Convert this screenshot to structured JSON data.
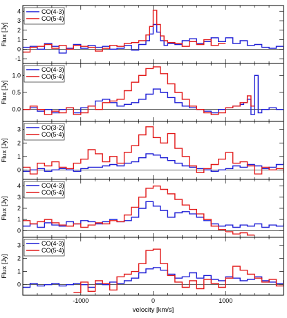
{
  "chart_data": [
    {
      "type": "line",
      "ylabel": "Flux [Jy]",
      "xlim": [
        -1800,
        1800
      ],
      "ylim": [
        -1.5,
        4.6
      ],
      "yticks": [
        "-1",
        "0",
        "1",
        "2",
        "3",
        "4"
      ],
      "legend_position": "top-left",
      "series": [
        {
          "name": "CO(4-3)",
          "color": "#1f1fd6",
          "x": [
            -1800,
            -1700,
            -1600,
            -1500,
            -1400,
            -1300,
            -1200,
            -1100,
            -1000,
            -900,
            -800,
            -700,
            -600,
            -500,
            -400,
            -300,
            -200,
            -100,
            -50,
            0,
            50,
            100,
            150,
            200,
            300,
            400,
            500,
            600,
            700,
            800,
            900,
            1000,
            1100,
            1200,
            1300,
            1400,
            1500,
            1600,
            1700,
            1800
          ],
          "y": [
            0.2,
            0.3,
            0.0,
            0.6,
            0.3,
            -0.4,
            0.1,
            0.5,
            0.1,
            0.4,
            0.2,
            0.3,
            0.0,
            0.1,
            0.4,
            -0.1,
            0.5,
            0.9,
            1.6,
            2.6,
            1.8,
            0.9,
            0.4,
            0.6,
            0.5,
            0.9,
            1.1,
            0.6,
            0.8,
            1.2,
            0.8,
            1.2,
            0.6,
            0.9,
            0.4,
            0.5,
            0.2,
            0.1,
            0.3,
            0.0
          ]
        },
        {
          "name": "CO(5-4)",
          "color": "#e21a1a",
          "x": [
            -1800,
            -1700,
            -1600,
            -1500,
            -1400,
            -1300,
            -1200,
            -1100,
            -1000,
            -900,
            -800,
            -700,
            -600,
            -500,
            -400,
            -300,
            -200,
            -100,
            -50,
            0,
            50,
            100,
            150,
            200,
            300,
            400,
            500,
            600,
            700,
            800,
            900
          ],
          "y": [
            -0.3,
            0.2,
            0.3,
            0.5,
            0.1,
            0.4,
            0.0,
            0.4,
            0.3,
            0.2,
            -0.2,
            0.1,
            0.4,
            0.3,
            0.6,
            0.7,
            0.9,
            1.5,
            2.4,
            4.1,
            2.6,
            1.4,
            0.9,
            0.7,
            0.6,
            0.3,
            0.8,
            0.5,
            1.0,
            0.4,
            0.6
          ]
        }
      ]
    },
    {
      "type": "line",
      "ylabel": "Flux [Jy]",
      "xlim": [
        -1800,
        1800
      ],
      "ylim": [
        -0.35,
        1.35
      ],
      "yticks": [
        "0.0",
        "0.5",
        "1.0"
      ],
      "legend_position": "top-left",
      "series": [
        {
          "name": "CO(4-3)",
          "color": "#1f1fd6",
          "x": [
            -1800,
            -1700,
            -1600,
            -1500,
            -1400,
            -1300,
            -1200,
            -1100,
            -1000,
            -900,
            -800,
            -700,
            -600,
            -500,
            -400,
            -300,
            -200,
            -100,
            0,
            100,
            200,
            300,
            400,
            500,
            600,
            700,
            800,
            900,
            1000,
            1100,
            1200,
            1250,
            1300,
            1350,
            1400,
            1450,
            1500,
            1600,
            1700,
            1800
          ],
          "y": [
            0.0,
            0.05,
            -0.05,
            0.0,
            -0.1,
            0.0,
            0.05,
            -0.1,
            0.05,
            0.1,
            0.25,
            0.3,
            0.2,
            0.1,
            0.15,
            0.2,
            0.3,
            0.45,
            0.6,
            0.5,
            0.35,
            0.2,
            0.1,
            0.05,
            0.0,
            -0.05,
            -0.1,
            0.0,
            0.05,
            0.1,
            0.15,
            0.2,
            0.3,
            -0.15,
            1.0,
            -0.1,
            0.0,
            0.05,
            0.0,
            0.0
          ]
        },
        {
          "name": "CO(5-4)",
          "color": "#e21a1a",
          "x": [
            -1800,
            -1700,
            -1600,
            -1500,
            -1400,
            -1300,
            -1200,
            -1100,
            -1000,
            -900,
            -800,
            -700,
            -600,
            -500,
            -400,
            -300,
            -200,
            -100,
            0,
            100,
            200,
            300,
            400,
            500,
            600,
            700,
            800,
            900,
            1000,
            1100,
            1200,
            1300,
            1350
          ],
          "y": [
            0.0,
            0.1,
            0.0,
            -0.15,
            -0.05,
            -0.1,
            0.05,
            -0.15,
            -0.1,
            0.1,
            0.0,
            0.2,
            0.25,
            0.3,
            0.55,
            0.8,
            1.0,
            1.2,
            1.25,
            1.05,
            0.75,
            0.5,
            0.3,
            0.1,
            0.0,
            -0.1,
            -0.15,
            -0.1,
            0.05,
            0.1,
            0.2,
            0.4,
            0.1
          ]
        }
      ]
    },
    {
      "type": "line",
      "ylabel": "Flux [Jy]",
      "xlim": [
        -1800,
        1800
      ],
      "ylim": [
        -0.7,
        3.6
      ],
      "yticks": [
        "0",
        "1",
        "2",
        "3"
      ],
      "legend_position": "top-left",
      "series": [
        {
          "name": "CO(3-2)",
          "color": "#1f1fd6",
          "x": [
            -1800,
            -1700,
            -1600,
            -1500,
            -1400,
            -1300,
            -1200,
            -1100,
            -1000,
            -900,
            -800,
            -700,
            -600,
            -500,
            -400,
            -300,
            -200,
            -100,
            0,
            100,
            200,
            300,
            400,
            500,
            600,
            700,
            800,
            900,
            1000,
            1100,
            1200,
            1300,
            1400,
            1500,
            1600,
            1700,
            1800
          ],
          "y": [
            -0.1,
            0.0,
            0.1,
            -0.1,
            0.0,
            0.1,
            0.0,
            -0.1,
            0.1,
            0.2,
            0.2,
            0.3,
            0.4,
            0.3,
            0.5,
            0.6,
            0.9,
            1.2,
            1.1,
            0.9,
            0.7,
            0.5,
            0.3,
            0.2,
            0.1,
            0.0,
            -0.1,
            0.0,
            0.1,
            0.3,
            0.2,
            0.4,
            0.3,
            0.1,
            0.2,
            0.4,
            0.6
          ]
        },
        {
          "name": "CO(5-4)",
          "color": "#e21a1a",
          "x": [
            -1800,
            -1700,
            -1600,
            -1500,
            -1400,
            -1300,
            -1200,
            -1100,
            -1000,
            -900,
            -800,
            -700,
            -600,
            -500,
            -400,
            -300,
            -200,
            -100,
            0,
            100,
            200,
            300,
            400,
            500,
            600,
            700,
            800,
            900,
            1000,
            1100,
            1200,
            1300,
            1400,
            1500,
            1600,
            1700,
            1800
          ],
          "y": [
            0.2,
            -0.3,
            0.5,
            0.3,
            0.6,
            0.2,
            0.1,
            0.5,
            0.8,
            1.5,
            1.2,
            0.6,
            1.0,
            0.5,
            1.3,
            1.8,
            2.6,
            3.2,
            2.4,
            2.0,
            2.7,
            1.6,
            1.0,
            0.3,
            -0.2,
            0.1,
            0.4,
            0.8,
            1.3,
            0.5,
            0.6,
            0.3,
            -0.3,
            0.2,
            0.0,
            0.1,
            -0.2
          ]
        }
      ]
    },
    {
      "type": "line",
      "ylabel": "Flux [Jy]",
      "xlim": [
        -1800,
        1800
      ],
      "ylim": [
        -0.6,
        4.6
      ],
      "yticks": [
        "0",
        "1",
        "2",
        "3",
        "4"
      ],
      "legend_position": "top-left",
      "series": [
        {
          "name": "CO(4-3)",
          "color": "#1f1fd6",
          "x": [
            -1800,
            -1700,
            -1600,
            -1500,
            -1400,
            -1300,
            -1200,
            -1100,
            -1000,
            -900,
            -800,
            -700,
            -600,
            -500,
            -400,
            -300,
            -200,
            -100,
            0,
            100,
            200,
            300,
            400,
            500,
            600,
            700,
            800,
            900,
            1000,
            1100,
            1200,
            1300,
            1400,
            1500,
            1600,
            1700,
            1800
          ],
          "y": [
            0.4,
            0.6,
            0.3,
            0.7,
            0.5,
            0.4,
            0.8,
            0.6,
            0.9,
            0.8,
            0.6,
            0.8,
            1.0,
            0.8,
            0.9,
            1.2,
            2.0,
            2.6,
            2.2,
            1.8,
            1.2,
            1.6,
            1.7,
            1.5,
            1.2,
            0.9,
            0.6,
            0.4,
            0.5,
            0.3,
            0.5,
            0.4,
            0.6,
            0.3,
            0.5,
            0.4,
            0.6
          ]
        },
        {
          "name": "CO(5-4)",
          "color": "#e21a1a",
          "x": [
            -1800,
            -1700,
            -1600,
            -1500,
            -1400,
            -1300,
            -1200,
            -1100,
            -1000,
            -900,
            -800,
            -700,
            -600,
            -500,
            -400,
            -300,
            -200,
            -100,
            0,
            100,
            200,
            300,
            400,
            500,
            600,
            700,
            800,
            900,
            1000,
            1100,
            1200,
            1300
          ],
          "y": [
            0.9,
            0.6,
            0.8,
            1.0,
            0.7,
            0.5,
            0.4,
            0.6,
            0.3,
            0.5,
            0.7,
            0.6,
            0.9,
            0.8,
            1.4,
            2.1,
            3.0,
            3.8,
            4.0,
            3.7,
            3.3,
            2.8,
            2.3,
            1.9,
            1.5,
            1.0,
            0.4,
            0.1,
            -0.1,
            -0.3,
            -0.2,
            -0.4
          ]
        }
      ]
    },
    {
      "type": "line",
      "xlabel": "velocity [km/s]",
      "ylabel": "Flux [Jy]",
      "xlim": [
        -1800,
        1800
      ],
      "ylim": [
        -0.8,
        3.6
      ],
      "xticks": [
        "-1000",
        "0",
        "1000"
      ],
      "yticks": [
        "0",
        "1",
        "2",
        "3"
      ],
      "legend_position": "top-left",
      "series": [
        {
          "name": "CO(4-3)",
          "color": "#1f1fd6",
          "x": [
            -1800,
            -1700,
            -1600,
            -1500,
            -1400,
            -1300,
            -1200,
            -1100,
            -1000,
            -900,
            -800,
            -700,
            -600,
            -500,
            -400,
            -300,
            -200,
            -100,
            0,
            100,
            200,
            300,
            400,
            500,
            600,
            700,
            800,
            900,
            1000,
            1100,
            1200,
            1300,
            1400,
            1500,
            1600,
            1700,
            1800
          ],
          "y": [
            -0.2,
            0.1,
            -0.1,
            0.0,
            0.1,
            -0.1,
            0.0,
            0.1,
            0.0,
            -0.2,
            0.1,
            0.0,
            0.2,
            0.1,
            0.3,
            0.5,
            0.9,
            1.2,
            1.3,
            1.1,
            0.8,
            0.5,
            0.6,
            0.9,
            0.5,
            0.7,
            0.4,
            0.3,
            0.6,
            0.5,
            0.3,
            0.4,
            0.6,
            0.3,
            0.2,
            0.1,
            0.3
          ]
        },
        {
          "name": "CO(5-4)",
          "color": "#e21a1a",
          "x": [
            -1100,
            -1000,
            -900,
            -800,
            -700,
            -600,
            -500,
            -400,
            -300,
            -200,
            -100,
            0,
            100,
            200,
            300,
            400,
            500,
            600,
            700,
            800,
            900,
            1000,
            1100,
            1200,
            1300,
            1400,
            1500,
            1600,
            1700,
            1800
          ],
          "y": [
            -0.6,
            0.2,
            -0.5,
            0.3,
            0.1,
            -0.4,
            0.6,
            0.8,
            1.0,
            1.6,
            2.6,
            2.7,
            1.6,
            0.7,
            0.2,
            -0.2,
            0.3,
            -0.3,
            0.4,
            0.1,
            -0.2,
            0.5,
            1.4,
            1.1,
            0.8,
            0.5,
            0.2,
            0.4,
            -0.1,
            0.3
          ]
        }
      ]
    }
  ]
}
